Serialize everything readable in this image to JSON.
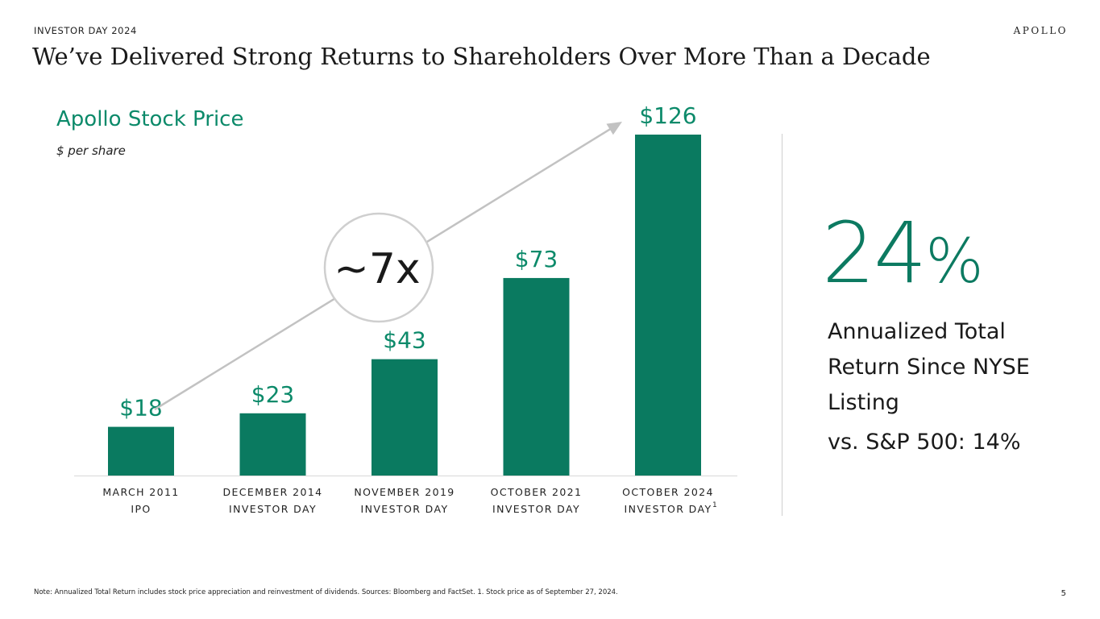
{
  "header": {
    "eyebrow": "INVESTOR DAY 2024",
    "logo": "APOLLO",
    "title": "We’ve Delivered Strong Returns to Shareholders Over More Than a Decade"
  },
  "chart_data": {
    "type": "bar",
    "title": "Apollo Stock Price",
    "ylabel": "$ per share",
    "categories": [
      {
        "line1": "MARCH 2011",
        "line2": "IPO",
        "sup": ""
      },
      {
        "line1": "DECEMBER 2014",
        "line2": "INVESTOR DAY",
        "sup": ""
      },
      {
        "line1": "NOVEMBER 2019",
        "line2": "INVESTOR DAY",
        "sup": ""
      },
      {
        "line1": "OCTOBER 2021",
        "line2": "INVESTOR DAY",
        "sup": ""
      },
      {
        "line1": "OCTOBER 2024",
        "line2": "INVESTOR DAY",
        "sup": "1"
      }
    ],
    "values": [
      18,
      23,
      43,
      73,
      126
    ],
    "labels": [
      "$18",
      "$23",
      "$43",
      "$73",
      "$126"
    ],
    "ylim": [
      0,
      126
    ],
    "annotation": {
      "text": "~7x",
      "style": "circle-on-arrow"
    },
    "colors": {
      "bar": "#0a7a60",
      "label": "#0c8a6a",
      "arrow": "#c2c2c2"
    }
  },
  "stat": {
    "value": "24",
    "unit": "%",
    "label": "Annualized Total Return Since NYSE Listing",
    "comparison": "vs. S&P 500: 14%"
  },
  "footer": {
    "note": "Note: Annualized Total Return includes stock price appreciation and reinvestment of dividends. Sources: Bloomberg and FactSet. 1. Stock price as of September 27, 2024.",
    "page_number": "5"
  }
}
